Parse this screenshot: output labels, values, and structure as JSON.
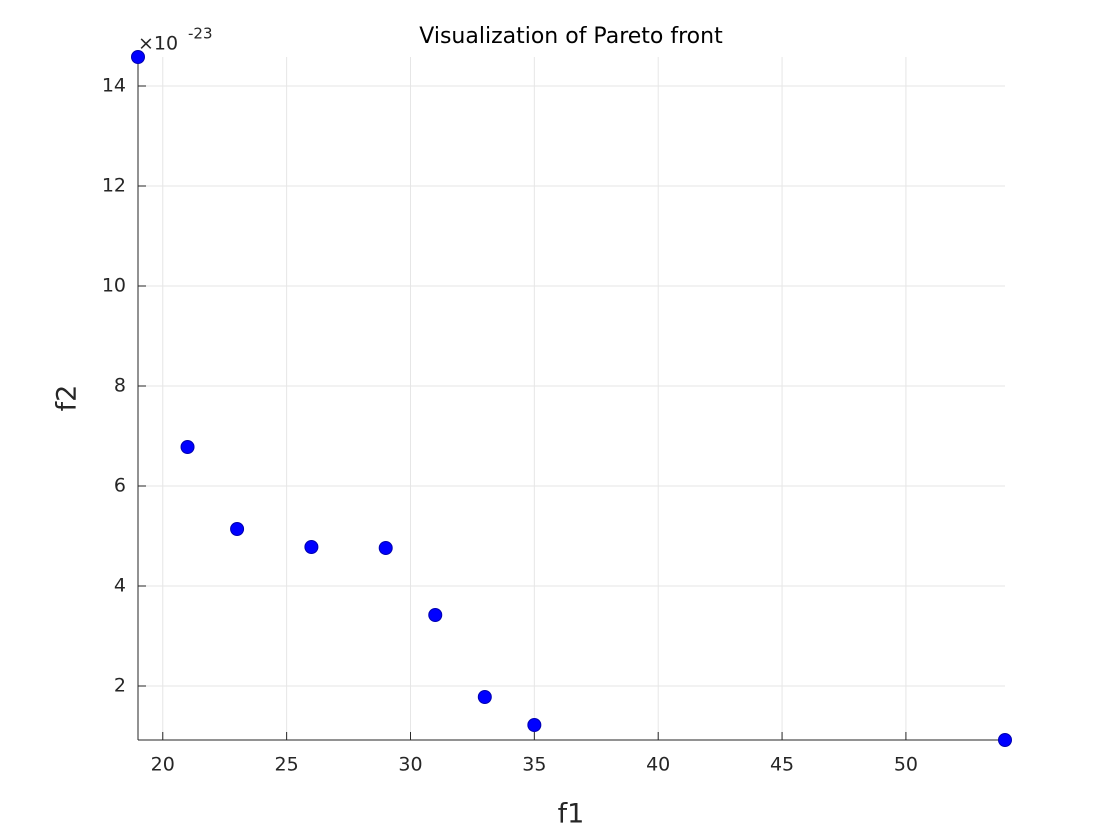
{
  "chart_data": {
    "type": "scatter",
    "title": "Visualization of Pareto front",
    "x_label": "f1",
    "y_label": "f2",
    "y_multiplier": "×10",
    "y_exponent": "-23",
    "x": [
      19,
      21,
      23,
      26,
      29,
      31,
      33,
      35,
      54
    ],
    "values": [
      14.58,
      6.78,
      5.14,
      4.78,
      4.76,
      3.42,
      1.78,
      1.22,
      0.92
    ],
    "color": "#0000ff",
    "xlim": [
      19,
      54
    ],
    "xticks": [
      20,
      25,
      30,
      35,
      40,
      45,
      50
    ],
    "ylim": [
      0.92,
      14.58
    ],
    "yticks": [
      2,
      4,
      6,
      8,
      10,
      12,
      14
    ],
    "grid": true
  }
}
